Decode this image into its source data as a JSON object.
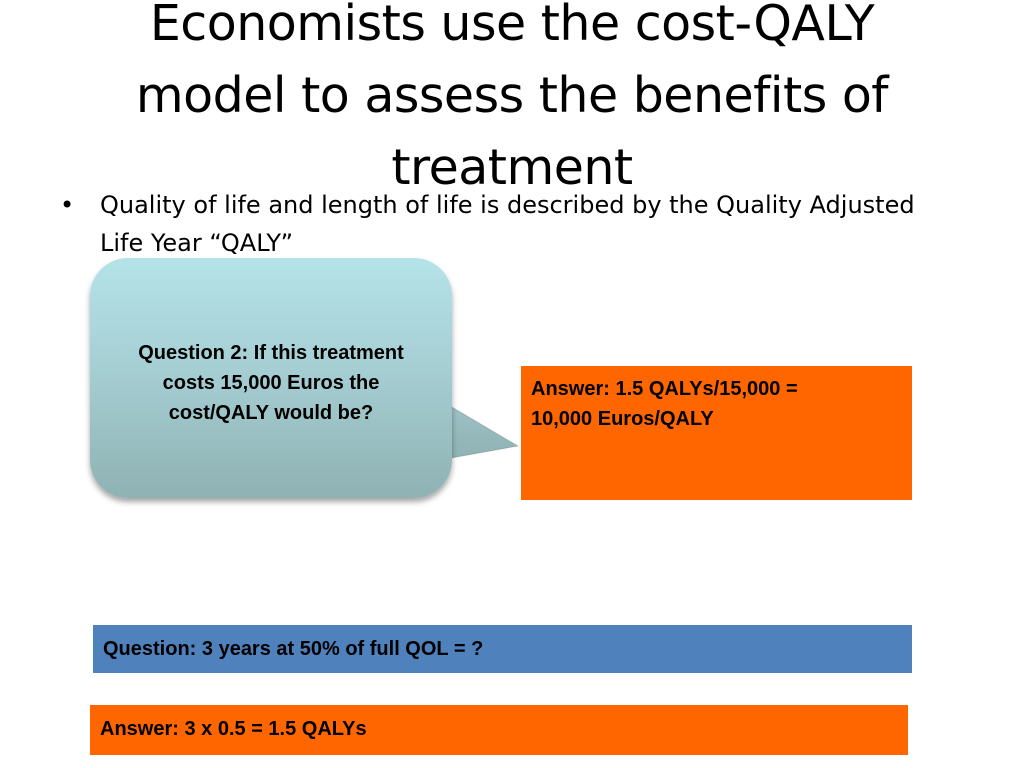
{
  "slide": {
    "title_line1": "Economists use the cost-QALY",
    "title_line2": "model to assess the benefits of",
    "title_line3": "treatment",
    "bullets": [
      {
        "mark": "•",
        "text": "Quality of life and length of life is described by the Quality Adjusted Life Year “QALY”"
      }
    ],
    "callout": {
      "text_line1": "Question 2: If this treatment",
      "text_line2": "costs 15,000 Euros the",
      "text_line3": "cost/QALY would be?"
    },
    "answer_box_1": {
      "text_line1": "Answer: 1.5 QALYs/15,000 =",
      "text_line2": "10,000 Euros/QALY"
    },
    "question_box": {
      "text": "Question: 3 years at 50% of full QOL = ?"
    },
    "answer_box_2": {
      "text": "Answer: 3 x 0.5 = 1.5 QALYs"
    }
  },
  "colors": {
    "orange_box": "#ff6600",
    "blue_box": "#4f81bd",
    "callout_top": "#b4e3e8",
    "callout_bottom": "#8fb2b3"
  }
}
